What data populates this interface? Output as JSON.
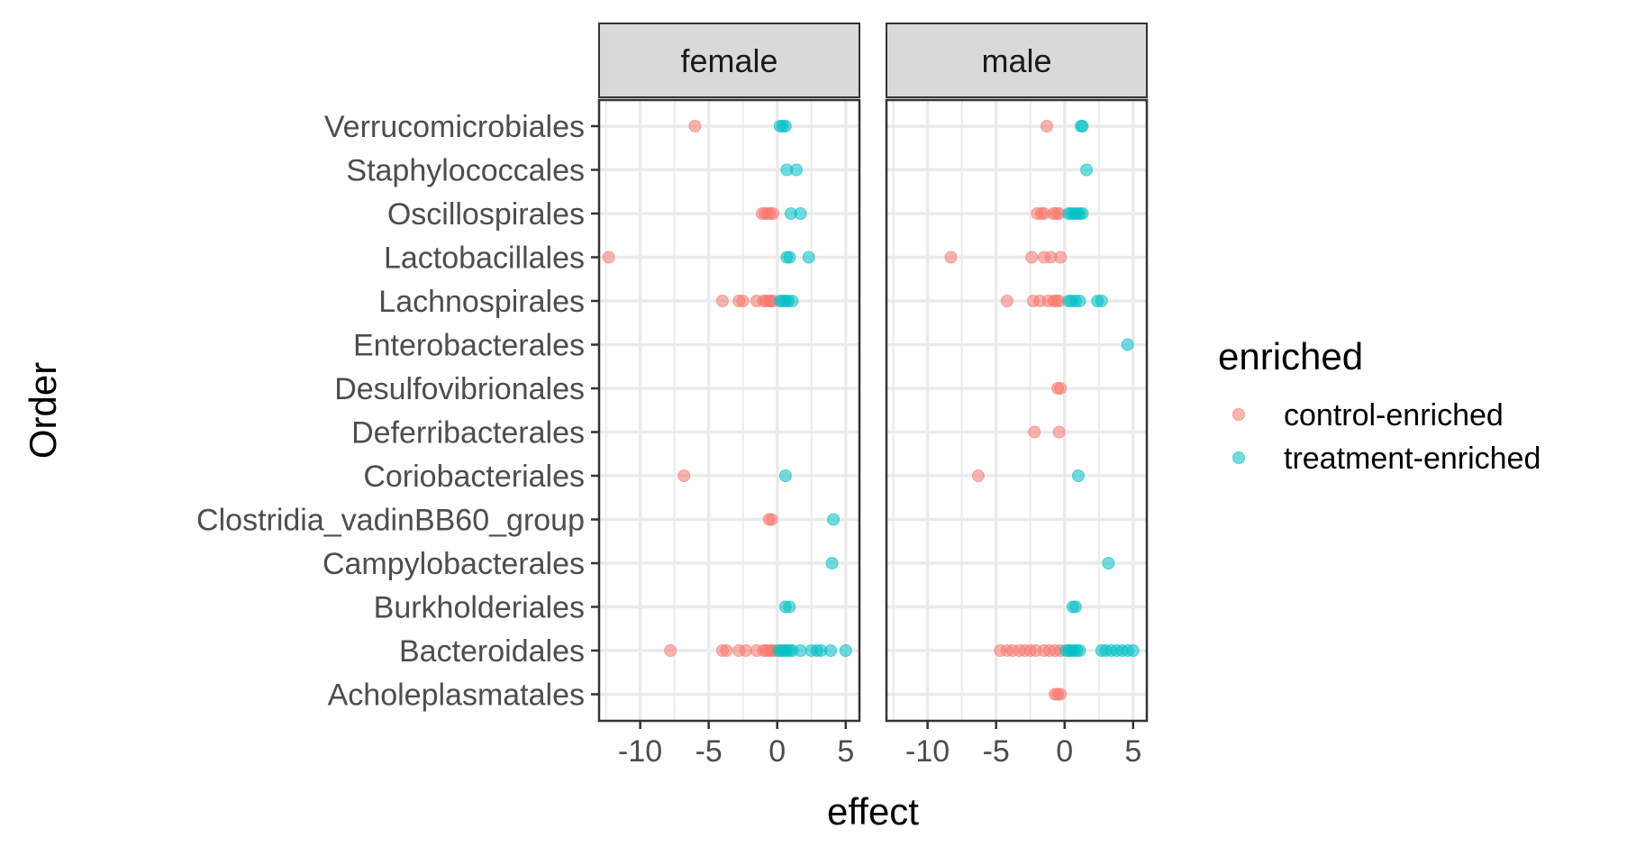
{
  "chart_data": {
    "type": "scatter",
    "xlabel": "effect",
    "ylabel": "Order",
    "xlim": [
      -13,
      6
    ],
    "x_ticks": [
      "-10",
      "-5",
      "0",
      "5"
    ],
    "x_tick_values": [
      -10,
      -5,
      0,
      5
    ],
    "grid": true,
    "legend": {
      "title": "enriched",
      "placement": "right",
      "entries": [
        {
          "label": "control-enriched",
          "color": "#F8766D"
        },
        {
          "label": "treatment-enriched",
          "color": "#00BFC4"
        }
      ]
    },
    "categories": [
      "Verrucomicrobiales",
      "Staphylococcales",
      "Oscillospirales",
      "Lactobacillales",
      "Lachnospirales",
      "Enterobacterales",
      "Desulfovibrionales",
      "Deferribacterales",
      "Coriobacteriales",
      "Clostridia_vadinBB60_group",
      "Campylobacterales",
      "Burkholderiales",
      "Bacteroidales",
      "Acholeplasmatales"
    ],
    "panels": [
      {
        "name": "female",
        "series": [
          {
            "name": "control-enriched",
            "points": [
              {
                "order": "Verrucomicrobiales",
                "x": [
                  -6.0
                ]
              },
              {
                "order": "Oscillospirales",
                "x": [
                  -1.1,
                  -0.9,
                  -0.7,
                  -0.5,
                  -0.3
                ]
              },
              {
                "order": "Lactobacillales",
                "x": [
                  -12.3
                ]
              },
              {
                "order": "Lachnospirales",
                "x": [
                  -4.0,
                  -2.8,
                  -2.5,
                  -1.5,
                  -1.0,
                  -0.8,
                  -0.6,
                  -0.5,
                  -0.3
                ]
              },
              {
                "order": "Coriobacteriales",
                "x": [
                  -6.8
                ]
              },
              {
                "order": "Clostridia_vadinBB60_group",
                "x": [
                  -0.6,
                  -0.4
                ]
              },
              {
                "order": "Bacteroidales",
                "x": [
                  -7.8,
                  -4.0,
                  -3.7,
                  -2.8,
                  -2.3,
                  -1.5,
                  -1.0,
                  -0.8,
                  -0.6,
                  -0.4,
                  -0.2
                ]
              }
            ]
          },
          {
            "name": "treatment-enriched",
            "points": [
              {
                "order": "Verrucomicrobiales",
                "x": [
                  0.2,
                  0.4,
                  0.6
                ]
              },
              {
                "order": "Staphylococcales",
                "x": [
                  0.7,
                  1.4
                ]
              },
              {
                "order": "Oscillospirales",
                "x": [
                  1.0,
                  1.7
                ]
              },
              {
                "order": "Lactobacillales",
                "x": [
                  0.7,
                  0.9,
                  2.3
                ]
              },
              {
                "order": "Lachnospirales",
                "x": [
                  0.2,
                  0.4,
                  0.6,
                  0.8,
                  1.1
                ]
              },
              {
                "order": "Coriobacteriales",
                "x": [
                  0.6
                ]
              },
              {
                "order": "Clostridia_vadinBB60_group",
                "x": [
                  4.1
                ]
              },
              {
                "order": "Campylobacterales",
                "x": [
                  4.0
                ]
              },
              {
                "order": "Burkholderiales",
                "x": [
                  0.6,
                  0.9
                ]
              },
              {
                "order": "Bacteroidales",
                "x": [
                  0.1,
                  0.3,
                  0.5,
                  0.7,
                  0.9,
                  1.1,
                  1.7,
                  2.5,
                  2.9,
                  3.2,
                  3.9,
                  5.0
                ]
              }
            ]
          }
        ]
      },
      {
        "name": "male",
        "series": [
          {
            "name": "control-enriched",
            "points": [
              {
                "order": "Verrucomicrobiales",
                "x": [
                  -1.3
                ]
              },
              {
                "order": "Oscillospirales",
                "x": [
                  -2.0,
                  -1.7,
                  -1.5,
                  -0.8,
                  -0.6,
                  -0.4
                ]
              },
              {
                "order": "Lactobacillales",
                "x": [
                  -8.3,
                  -2.4,
                  -1.5,
                  -1.0,
                  -0.3
                ]
              },
              {
                "order": "Lachnospirales",
                "x": [
                  -4.2,
                  -2.3,
                  -1.8,
                  -1.2,
                  -0.8,
                  -0.6,
                  -0.4
                ]
              },
              {
                "order": "Desulfovibrionales",
                "x": [
                  -0.5,
                  -0.3
                ]
              },
              {
                "order": "Deferribacterales",
                "x": [
                  -2.2,
                  -0.4
                ]
              },
              {
                "order": "Coriobacteriales",
                "x": [
                  -6.3
                ]
              },
              {
                "order": "Bacteroidales",
                "x": [
                  -4.7,
                  -4.2,
                  -3.8,
                  -3.3,
                  -2.9,
                  -2.5,
                  -2.1,
                  -1.5,
                  -1.1,
                  -0.7,
                  -0.3
                ]
              },
              {
                "order": "Acholeplasmatales",
                "x": [
                  -0.7,
                  -0.5,
                  -0.3
                ]
              }
            ]
          },
          {
            "name": "treatment-enriched",
            "points": [
              {
                "order": "Verrucomicrobiales",
                "x": [
                  1.2,
                  1.3
                ]
              },
              {
                "order": "Staphylococcales",
                "x": [
                  1.6
                ]
              },
              {
                "order": "Oscillospirales",
                "x": [
                  0.3,
                  0.5,
                  0.7,
                  0.9,
                  1.1,
                  1.3
                ]
              },
              {
                "order": "Lachnospirales",
                "x": [
                  0.3,
                  0.5,
                  0.8,
                  1.1,
                  2.4,
                  2.7
                ]
              },
              {
                "order": "Enterobacterales",
                "x": [
                  4.6
                ]
              },
              {
                "order": "Coriobacteriales",
                "x": [
                  1.0
                ]
              },
              {
                "order": "Campylobacterales",
                "x": [
                  3.2
                ]
              },
              {
                "order": "Burkholderiales",
                "x": [
                  0.6,
                  0.8
                ]
              },
              {
                "order": "Bacteroidales",
                "x": [
                  0.1,
                  0.3,
                  0.5,
                  0.7,
                  0.9,
                  1.1,
                  2.7,
                  3.0,
                  3.4,
                  3.8,
                  4.2,
                  4.6,
                  5.0
                ]
              }
            ]
          }
        ]
      }
    ]
  }
}
